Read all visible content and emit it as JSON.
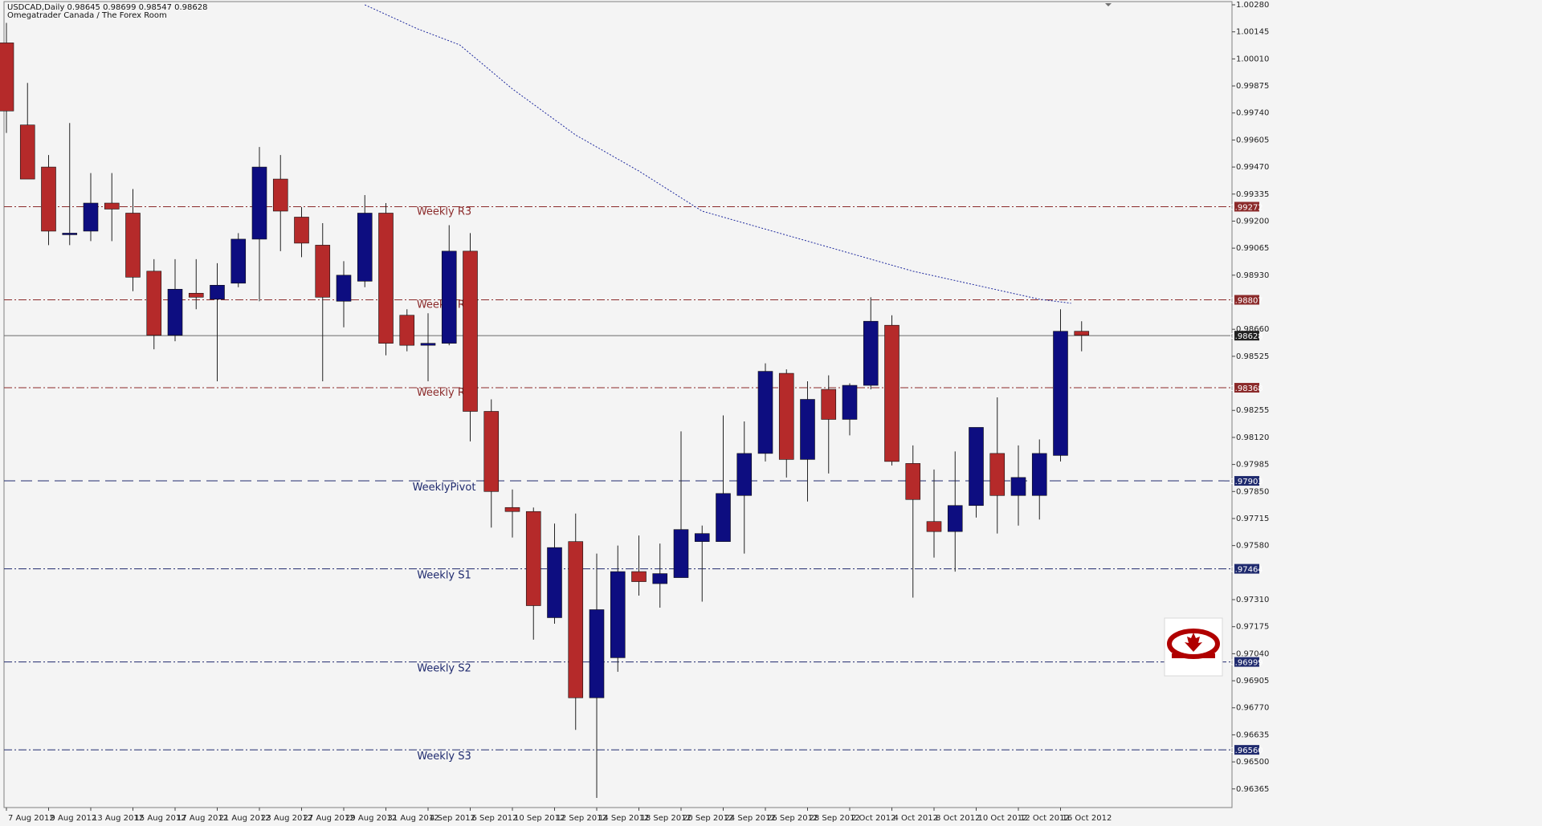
{
  "header": {
    "line1": "USDCAD,Daily  0.98645 0.98699 0.98547 0.98628",
    "line2": "Omegatrader Canada / The Forex Room"
  },
  "colors": {
    "background": "#f4f4f4",
    "bull": "#0d0d80",
    "bear": "#b52a2a",
    "wick": "#222222",
    "resistance": "#8b2a2a",
    "support": "#1f2a6e",
    "ma": "#1f2a9e"
  },
  "chart_data": {
    "type": "candlestick",
    "symbol": "USDCAD",
    "timeframe": "Daily",
    "ylim": [
      0.9628,
      1.0028
    ],
    "y_ticks": [
      "1.00280",
      "1.00145",
      "1.00010",
      "0.99875",
      "0.99740",
      "0.99605",
      "0.99470",
      "0.99335",
      "0.99200",
      "0.99065",
      "0.98930",
      "0.98660",
      "0.98525",
      "0.98255",
      "0.98120",
      "0.97985",
      "0.97850",
      "0.97715",
      "0.97580",
      "0.97310",
      "0.97175",
      "0.97040",
      "0.96905",
      "0.96770",
      "0.96635",
      "0.96500",
      "0.96365"
    ],
    "x_ticks": [
      "7 Aug 2012",
      "9 Aug 2012",
      "13 Aug 2012",
      "15 Aug 2012",
      "17 Aug 2012",
      "21 Aug 2012",
      "23 Aug 2012",
      "27 Aug 2012",
      "29 Aug 2012",
      "31 Aug 2012",
      "4 Sep 2012",
      "6 Sep 2012",
      "10 Sep 2012",
      "12 Sep 2012",
      "14 Sep 2012",
      "18 Sep 2012",
      "20 Sep 2012",
      "24 Sep 2012",
      "26 Sep 2012",
      "28 Sep 2012",
      "2 Oct 2012",
      "4 Oct 2012",
      "8 Oct 2012",
      "10 Oct 2012",
      "12 Oct 2012",
      "16 Oct 2012"
    ],
    "candles": [
      {
        "o": 1.0009,
        "h": 1.0019,
        "l": 0.9964,
        "c": 0.9975
      },
      {
        "o": 0.9968,
        "h": 0.9989,
        "l": 0.9942,
        "c": 0.9941
      },
      {
        "o": 0.9947,
        "h": 0.9953,
        "l": 0.9908,
        "c": 0.9915
      },
      {
        "o": 0.9914,
        "h": 0.9969,
        "l": 0.9908,
        "c": 0.9914
      },
      {
        "o": 0.9915,
        "h": 0.9944,
        "l": 0.991,
        "c": 0.9929
      },
      {
        "o": 0.9929,
        "h": 0.9944,
        "l": 0.991,
        "c": 0.9926
      },
      {
        "o": 0.9924,
        "h": 0.9936,
        "l": 0.9885,
        "c": 0.9892
      },
      {
        "o": 0.9895,
        "h": 0.9901,
        "l": 0.9856,
        "c": 0.9863
      },
      {
        "o": 0.9863,
        "h": 0.9901,
        "l": 0.986,
        "c": 0.9886
      },
      {
        "o": 0.9884,
        "h": 0.9901,
        "l": 0.9876,
        "c": 0.9882
      },
      {
        "o": 0.9881,
        "h": 0.9899,
        "l": 0.984,
        "c": 0.9888
      },
      {
        "o": 0.9889,
        "h": 0.9914,
        "l": 0.9887,
        "c": 0.9911
      },
      {
        "o": 0.9911,
        "h": 0.9957,
        "l": 0.988,
        "c": 0.9947
      },
      {
        "o": 0.9941,
        "h": 0.9953,
        "l": 0.9905,
        "c": 0.9925
      },
      {
        "o": 0.9922,
        "h": 0.9927,
        "l": 0.9902,
        "c": 0.9909
      },
      {
        "o": 0.9908,
        "h": 0.9919,
        "l": 0.984,
        "c": 0.9882
      },
      {
        "o": 0.988,
        "h": 0.99,
        "l": 0.9867,
        "c": 0.9893
      },
      {
        "o": 0.989,
        "h": 0.9933,
        "l": 0.9887,
        "c": 0.9924
      },
      {
        "o": 0.9924,
        "h": 0.9929,
        "l": 0.9853,
        "c": 0.9859
      },
      {
        "o": 0.9873,
        "h": 0.9876,
        "l": 0.9855,
        "c": 0.9858
      },
      {
        "o": 0.9858,
        "h": 0.9874,
        "l": 0.984,
        "c": 0.9859
      },
      {
        "o": 0.9859,
        "h": 0.9918,
        "l": 0.9858,
        "c": 0.9905
      },
      {
        "o": 0.9905,
        "h": 0.9914,
        "l": 0.981,
        "c": 0.9825
      },
      {
        "o": 0.9825,
        "h": 0.9831,
        "l": 0.9767,
        "c": 0.9785
      },
      {
        "o": 0.9777,
        "h": 0.9786,
        "l": 0.9762,
        "c": 0.9775
      },
      {
        "o": 0.9775,
        "h": 0.9777,
        "l": 0.9711,
        "c": 0.9728
      },
      {
        "o": 0.9722,
        "h": 0.9769,
        "l": 0.9719,
        "c": 0.9757
      },
      {
        "o": 0.976,
        "h": 0.9774,
        "l": 0.9666,
        "c": 0.9682
      },
      {
        "o": 0.9682,
        "h": 0.9754,
        "l": 0.9632,
        "c": 0.9726
      },
      {
        "o": 0.9702,
        "h": 0.9758,
        "l": 0.9695,
        "c": 0.9745
      },
      {
        "o": 0.9745,
        "h": 0.9763,
        "l": 0.9733,
        "c": 0.974
      },
      {
        "o": 0.9739,
        "h": 0.9759,
        "l": 0.9727,
        "c": 0.9744
      },
      {
        "o": 0.9742,
        "h": 0.9815,
        "l": 0.9742,
        "c": 0.9766
      },
      {
        "o": 0.976,
        "h": 0.9768,
        "l": 0.973,
        "c": 0.9764
      },
      {
        "o": 0.976,
        "h": 0.9823,
        "l": 0.976,
        "c": 0.9784
      },
      {
        "o": 0.9783,
        "h": 0.982,
        "l": 0.9754,
        "c": 0.9804
      },
      {
        "o": 0.9804,
        "h": 0.9849,
        "l": 0.98,
        "c": 0.9845
      },
      {
        "o": 0.9844,
        "h": 0.9846,
        "l": 0.9792,
        "c": 0.9801
      },
      {
        "o": 0.9801,
        "h": 0.984,
        "l": 0.978,
        "c": 0.9831
      },
      {
        "o": 0.9836,
        "h": 0.9843,
        "l": 0.9794,
        "c": 0.9821
      },
      {
        "o": 0.9821,
        "h": 0.9839,
        "l": 0.9813,
        "c": 0.9838
      },
      {
        "o": 0.9838,
        "h": 0.9882,
        "l": 0.9836,
        "c": 0.987
      },
      {
        "o": 0.9868,
        "h": 0.9873,
        "l": 0.9798,
        "c": 0.98
      },
      {
        "o": 0.9799,
        "h": 0.9808,
        "l": 0.9732,
        "c": 0.9781
      },
      {
        "o": 0.977,
        "h": 0.9796,
        "l": 0.9752,
        "c": 0.9765
      },
      {
        "o": 0.9765,
        "h": 0.9805,
        "l": 0.9745,
        "c": 0.9778
      },
      {
        "o": 0.9778,
        "h": 0.9815,
        "l": 0.9772,
        "c": 0.9817
      },
      {
        "o": 0.9804,
        "h": 0.9832,
        "l": 0.9764,
        "c": 0.9783
      },
      {
        "o": 0.9783,
        "h": 0.9808,
        "l": 0.9768,
        "c": 0.9792
      },
      {
        "o": 0.9783,
        "h": 0.9811,
        "l": 0.9771,
        "c": 0.9804
      },
      {
        "o": 0.9803,
        "h": 0.9876,
        "l": 0.98,
        "c": 0.9865
      },
      {
        "o": 0.9865,
        "h": 0.987,
        "l": 0.9855,
        "c": 0.9863
      }
    ],
    "levels": [
      {
        "label": "Weekly R3",
        "value": 0.99272,
        "tag": "0.99272",
        "kind": "resistance"
      },
      {
        "label": "Weekly R2",
        "value": 0.98807,
        "tag": "0.98807",
        "kind": "resistance"
      },
      {
        "label": "Weekly R1",
        "value": 0.98368,
        "tag": "0.98368",
        "kind": "resistance"
      },
      {
        "label": "WeeklyPivot",
        "value": 0.97903,
        "tag": "0.97903",
        "kind": "pivot"
      },
      {
        "label": "Weekly S1",
        "value": 0.97464,
        "tag": "0.97464",
        "kind": "support"
      },
      {
        "label": "Weekly S2",
        "value": 0.96999,
        "tag": "0.96999",
        "kind": "support"
      },
      {
        "label": "Weekly S3",
        "value": 0.9656,
        "tag": "0.96560",
        "kind": "support"
      }
    ],
    "current_price": {
      "value": 0.98628,
      "tag": "0.98628"
    },
    "moving_average": [
      {
        "i": 17.0,
        "v": 1.0028
      },
      {
        "i": 19.5,
        "v": 1.0016
      },
      {
        "i": 21.5,
        "v": 1.0008
      },
      {
        "i": 24.0,
        "v": 0.9986
      },
      {
        "i": 27.0,
        "v": 0.9963
      },
      {
        "i": 30.0,
        "v": 0.9945
      },
      {
        "i": 33.0,
        "v": 0.9925
      },
      {
        "i": 37.0,
        "v": 0.9913
      },
      {
        "i": 40.0,
        "v": 0.9904
      },
      {
        "i": 43.0,
        "v": 0.9895
      },
      {
        "i": 46.0,
        "v": 0.9888
      },
      {
        "i": 49.0,
        "v": 0.9881
      },
      {
        "i": 50.5,
        "v": 0.9879
      }
    ]
  }
}
